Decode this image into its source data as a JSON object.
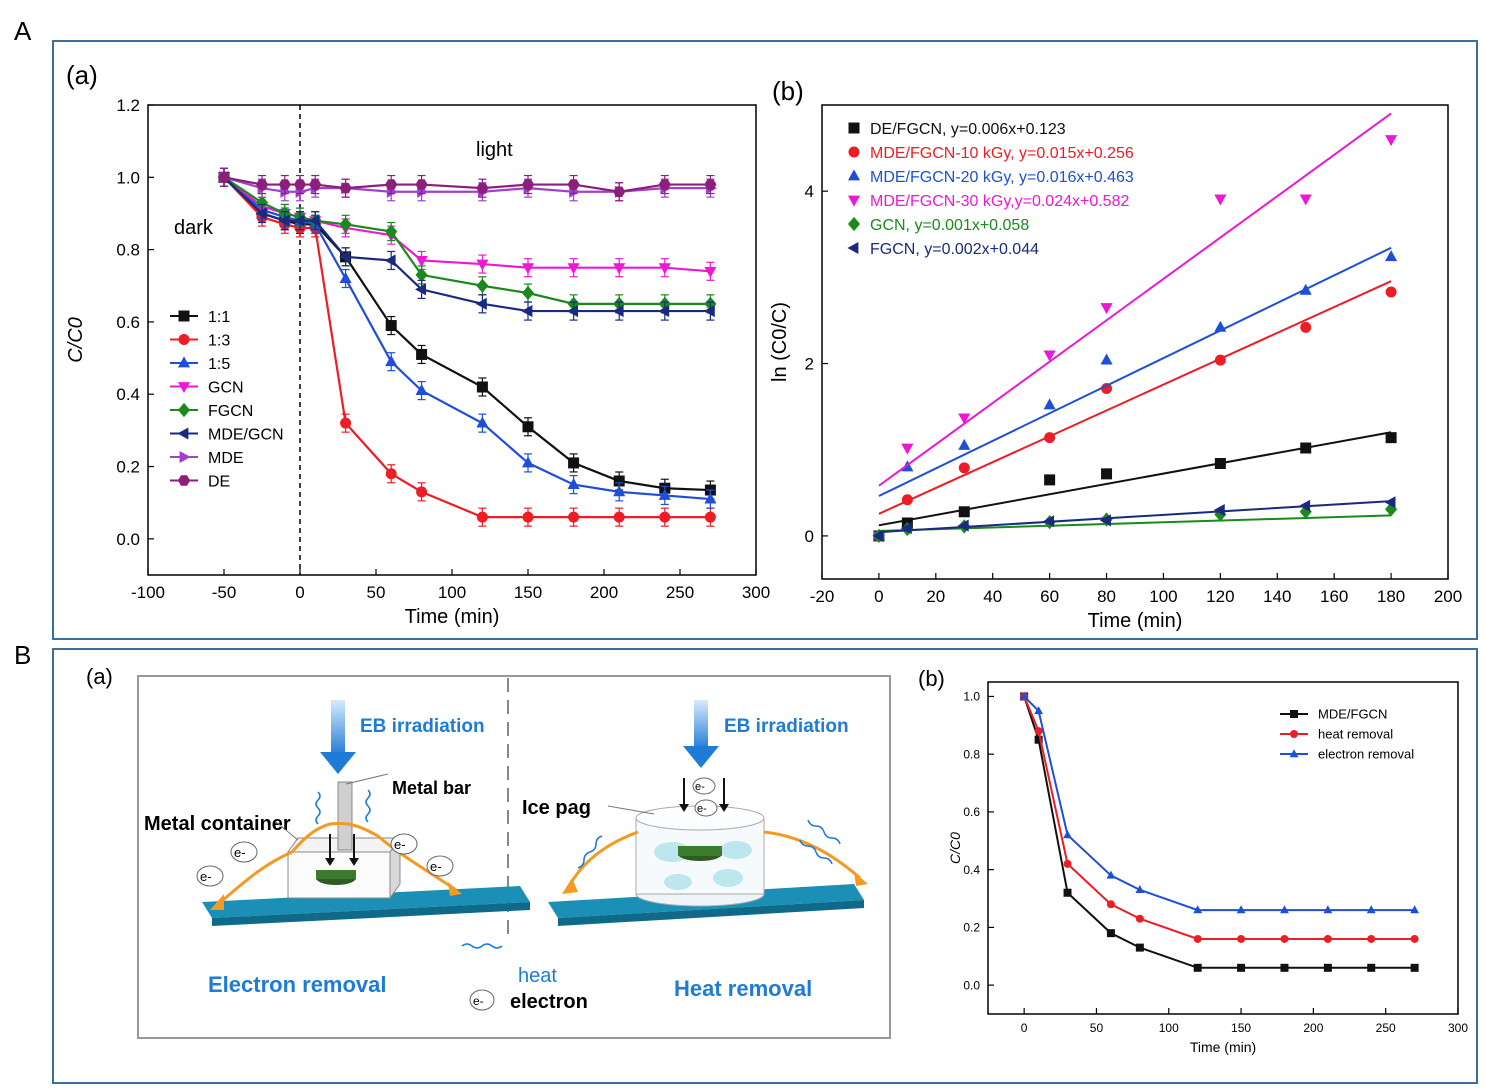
{
  "panels": {
    "A": "A",
    "B": "B"
  },
  "colors": {
    "black": "#111111",
    "red": "#ee1c24",
    "blue": "#1f4fd8",
    "magenta": "#ec19d4",
    "green": "#1a8a1a",
    "navy": "#1a2a80",
    "violet": "#a040d0",
    "plum": "#8b1f7a",
    "frame": "#3a6fa0",
    "accent": "#1e7bd6",
    "bar": "#1b8fb5",
    "orange": "#f39a23"
  },
  "chart_data": [
    {
      "id": "A_a",
      "panel_label": "(a)",
      "type": "line",
      "xlabel": "Time (min)",
      "ylabel": "C/C0",
      "xlim": [
        -100,
        300
      ],
      "ylim": [
        -0.1,
        1.2
      ],
      "xticks": [
        "-100",
        "-50",
        "0",
        "50",
        "100",
        "150",
        "200",
        "250",
        "300"
      ],
      "yticks": [
        "0.0",
        "0.2",
        "0.4",
        "0.6",
        "0.8",
        "1.0",
        "1.2"
      ],
      "ytick_labels": [
        "0.0",
        "0.2",
        "0.4",
        "0.6",
        "0.8",
        "1.0",
        "1.2"
      ],
      "annotations": {
        "dark": "dark",
        "light": "light"
      },
      "divider_x": 0,
      "legend_position": "left-middle",
      "series": [
        {
          "name": "1:1",
          "color": "#111111",
          "marker": "square",
          "x": [
            -50,
            -25,
            -10,
            0,
            10,
            30,
            60,
            80,
            120,
            150,
            180,
            210,
            240,
            270
          ],
          "values": [
            1.0,
            0.9,
            0.88,
            0.87,
            0.87,
            0.78,
            0.59,
            0.51,
            0.42,
            0.31,
            0.21,
            0.16,
            0.14,
            0.135
          ]
        },
        {
          "name": "1:3",
          "color": "#ee1c24",
          "marker": "circle",
          "x": [
            -50,
            -25,
            -10,
            0,
            10,
            30,
            60,
            80,
            120,
            150,
            180,
            210,
            240,
            270
          ],
          "values": [
            1.0,
            0.89,
            0.87,
            0.86,
            0.86,
            0.32,
            0.18,
            0.13,
            0.06,
            0.06,
            0.06,
            0.06,
            0.06,
            0.06
          ]
        },
        {
          "name": "1:5",
          "color": "#1f4fd8",
          "marker": "triangle-up",
          "x": [
            -50,
            -25,
            -10,
            0,
            10,
            30,
            60,
            80,
            120,
            150,
            180,
            210,
            240,
            270
          ],
          "values": [
            1.0,
            0.91,
            0.89,
            0.88,
            0.87,
            0.72,
            0.49,
            0.41,
            0.32,
            0.21,
            0.15,
            0.13,
            0.12,
            0.11
          ]
        },
        {
          "name": "GCN",
          "color": "#ec19d4",
          "marker": "triangle-down",
          "x": [
            -50,
            -25,
            -10,
            0,
            10,
            30,
            60,
            80,
            120,
            150,
            180,
            210,
            240,
            270
          ],
          "values": [
            1.0,
            0.92,
            0.9,
            0.89,
            0.88,
            0.86,
            0.84,
            0.77,
            0.76,
            0.75,
            0.75,
            0.75,
            0.75,
            0.74
          ]
        },
        {
          "name": "FGCN",
          "color": "#1a8a1a",
          "marker": "diamond",
          "x": [
            -50,
            -25,
            -10,
            0,
            10,
            30,
            60,
            80,
            120,
            150,
            180,
            210,
            240,
            270
          ],
          "values": [
            1.0,
            0.93,
            0.9,
            0.89,
            0.88,
            0.87,
            0.85,
            0.73,
            0.7,
            0.68,
            0.65,
            0.65,
            0.65,
            0.65
          ]
        },
        {
          "name": "MDE/GCN",
          "color": "#1a2a80",
          "marker": "triangle-left",
          "x": [
            -50,
            -25,
            -10,
            0,
            10,
            30,
            60,
            80,
            120,
            150,
            180,
            210,
            240,
            270
          ],
          "values": [
            1.0,
            0.9,
            0.88,
            0.88,
            0.88,
            0.78,
            0.77,
            0.69,
            0.65,
            0.63,
            0.63,
            0.63,
            0.63,
            0.63
          ]
        },
        {
          "name": "MDE",
          "color": "#a040d0",
          "marker": "triangle-right",
          "x": [
            -50,
            -25,
            -10,
            0,
            10,
            30,
            60,
            80,
            120,
            150,
            180,
            210,
            240,
            270
          ],
          "values": [
            1.0,
            0.97,
            0.96,
            0.96,
            0.97,
            0.97,
            0.96,
            0.96,
            0.96,
            0.97,
            0.96,
            0.96,
            0.97,
            0.97
          ]
        },
        {
          "name": "DE",
          "color": "#8b1f7a",
          "marker": "hexagon",
          "x": [
            -50,
            -25,
            -10,
            0,
            10,
            30,
            60,
            80,
            120,
            150,
            180,
            210,
            240,
            270
          ],
          "values": [
            1.0,
            0.98,
            0.98,
            0.98,
            0.98,
            0.97,
            0.98,
            0.98,
            0.97,
            0.98,
            0.98,
            0.96,
            0.98,
            0.98
          ]
        }
      ]
    },
    {
      "id": "A_b",
      "panel_label": "(b)",
      "type": "scatter",
      "xlabel": "Time (min)",
      "ylabel": "ln (C0/C)",
      "xlim": [
        -20,
        200
      ],
      "ylim": [
        -0.5,
        5
      ],
      "xticks": [
        "-20",
        "0",
        "20",
        "40",
        "60",
        "80",
        "100",
        "120",
        "140",
        "160",
        "180",
        "200"
      ],
      "yticks": [
        "0",
        "2",
        "4"
      ],
      "legend_position": "top-left",
      "series": [
        {
          "name": "DE/FGCN, y=0.006x+0.123",
          "color": "#111111",
          "marker": "square",
          "slope": 0.006,
          "intercept": 0.123,
          "x": [
            0,
            10,
            30,
            60,
            80,
            120,
            150,
            180
          ],
          "values": [
            0,
            0.15,
            0.28,
            0.65,
            0.72,
            0.84,
            1.02,
            1.14
          ]
        },
        {
          "name": "MDE/FGCN-10 kGy, y=0.015x+0.256",
          "color": "#ee1c24",
          "marker": "circle",
          "slope": 0.015,
          "intercept": 0.256,
          "x": [
            0,
            10,
            30,
            60,
            80,
            120,
            150,
            180
          ],
          "values": [
            0,
            0.42,
            0.79,
            1.14,
            1.71,
            2.04,
            2.42,
            2.83
          ]
        },
        {
          "name": "MDE/FGCN-20 kGy, y=0.016x+0.463",
          "color": "#1f4fd8",
          "marker": "triangle-up",
          "slope": 0.016,
          "intercept": 0.463,
          "x": [
            0,
            10,
            30,
            60,
            80,
            120,
            150,
            180
          ],
          "values": [
            0,
            0.8,
            1.05,
            1.52,
            2.04,
            2.42,
            2.85,
            3.24
          ]
        },
        {
          "name": "MDE/FGCN-30 kGy,y=0.024x+0.582",
          "color": "#ec19d4",
          "marker": "triangle-down",
          "slope": 0.024,
          "intercept": 0.582,
          "x": [
            0,
            10,
            30,
            60,
            80,
            120,
            150,
            180
          ],
          "values": [
            0,
            1.02,
            1.37,
            2.1,
            2.65,
            3.91,
            3.91,
            4.6
          ]
        },
        {
          "name": "GCN, y=0.001x+0.058",
          "color": "#1a8a1a",
          "marker": "diamond",
          "slope": 0.001,
          "intercept": 0.058,
          "x": [
            0,
            10,
            30,
            60,
            80,
            120,
            150,
            180
          ],
          "values": [
            0,
            0.08,
            0.11,
            0.16,
            0.19,
            0.25,
            0.28,
            0.31
          ]
        },
        {
          "name": "FGCN, y=0.002x+0.044",
          "color": "#1a2a80",
          "marker": "triangle-left",
          "slope": 0.002,
          "intercept": 0.044,
          "x": [
            0,
            10,
            30,
            60,
            80,
            120,
            150,
            180
          ],
          "values": [
            0,
            0.09,
            0.12,
            0.17,
            0.18,
            0.3,
            0.35,
            0.39
          ]
        }
      ]
    },
    {
      "id": "B_b",
      "panel_label": "(b)",
      "type": "line",
      "xlabel": "Time (min)",
      "ylabel": "C/C0",
      "xlim": [
        -25,
        300
      ],
      "ylim": [
        -0.1,
        1.05
      ],
      "xticks": [
        "0",
        "50",
        "100",
        "150",
        "200",
        "250",
        "300"
      ],
      "yticks": [
        "0.0",
        "0.2",
        "0.4",
        "0.6",
        "0.8",
        "1.0"
      ],
      "legend_position": "top-right",
      "series": [
        {
          "name": "MDE/FGCN",
          "color": "#111111",
          "marker": "square",
          "x": [
            0,
            10,
            30,
            60,
            80,
            120,
            150,
            180,
            210,
            240,
            270
          ],
          "values": [
            1.0,
            0.85,
            0.32,
            0.18,
            0.13,
            0.06,
            0.06,
            0.06,
            0.06,
            0.06,
            0.06
          ]
        },
        {
          "name": "heat removal",
          "color": "#ee1c24",
          "marker": "circle",
          "x": [
            0,
            10,
            30,
            60,
            80,
            120,
            150,
            180,
            210,
            240,
            270
          ],
          "values": [
            1.0,
            0.88,
            0.42,
            0.28,
            0.23,
            0.16,
            0.16,
            0.16,
            0.16,
            0.16,
            0.16
          ]
        },
        {
          "name": "electron removal",
          "color": "#1f4fd8",
          "marker": "triangle-up",
          "x": [
            0,
            10,
            30,
            60,
            80,
            120,
            150,
            180,
            210,
            240,
            270
          ],
          "values": [
            1.0,
            0.95,
            0.52,
            0.38,
            0.33,
            0.26,
            0.26,
            0.26,
            0.26,
            0.26,
            0.26
          ]
        }
      ]
    }
  ],
  "schematic": {
    "panel_label": "(a)",
    "left": {
      "irradiation": "EB irradiation",
      "metal_bar": "Metal bar",
      "metal_container": "Metal container",
      "title": "Electron removal",
      "electron": "e-"
    },
    "right": {
      "irradiation": "EB irradiation",
      "ice": "Ice pag",
      "title": "Heat removal",
      "electron": "e-"
    },
    "legend": {
      "heat": "heat",
      "electron": "electron",
      "electron_symbol": "e-"
    }
  }
}
